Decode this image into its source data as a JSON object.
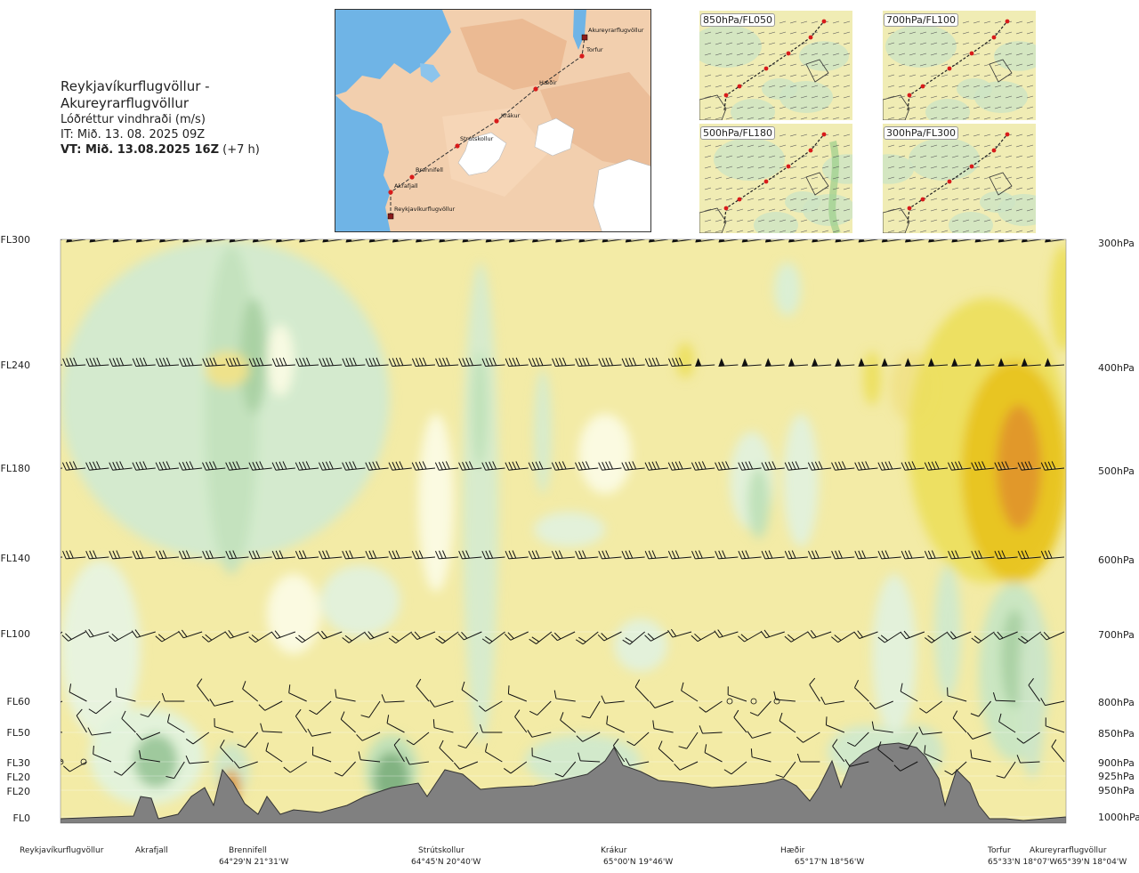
{
  "header": {
    "title": "Reykjavíkurflugvöllur - Akureyrarflugvöllur",
    "subtitle": "Lóðréttur vindhraði (m/s)",
    "initial_time": "IT: Mið. 13. 08. 2025 09Z",
    "valid_time_bold": "VT: Mið. 13.08.2025 16Z",
    "valid_time_suffix": "(+7 h)"
  },
  "colors": {
    "strong_down": "#7fb17f",
    "down": "#a9d1a2",
    "weak_down": "#cfe8ca",
    "neutral_pale": "#fbfbe4",
    "weak_up": "#f3eba6",
    "up": "#ecdf5e",
    "strong_up": "#e8c420",
    "very_strong_up": "#e0962a",
    "terrain": "#808080",
    "route": "#d81b1b",
    "sea": "#6fb4e6",
    "land": "#f0c7a3",
    "snow": "#ffffff"
  },
  "route_map": {
    "waypoints": [
      {
        "name": "Reykjavíkurflugvöllur"
      },
      {
        "name": "Akrafjall"
      },
      {
        "name": "Brennifell"
      },
      {
        "name": "Strútskollur"
      },
      {
        "name": "Krákur"
      },
      {
        "name": "Hæðir"
      },
      {
        "name": "Torfur"
      },
      {
        "name": "Akureyrarflugvöllur"
      }
    ]
  },
  "panels": [
    {
      "label": "850hPa/FL050",
      "icon": "wind-map-icon"
    },
    {
      "label": "700hPa/FL100",
      "icon": "wind-map-icon"
    },
    {
      "label": "500hPa/FL180",
      "icon": "wind-map-icon"
    },
    {
      "label": "300hPa/FL300",
      "icon": "wind-map-icon"
    }
  ],
  "chart_data": {
    "type": "heatmap",
    "title": "Reykjavíkurflugvöllur - Akureyrarflugvöllur",
    "variable": "Lóðréttur vindhraði (m/s)",
    "flight_levels": [
      "FL300",
      "FL240",
      "FL180",
      "FL140",
      "FL100",
      "FL60",
      "FL50",
      "FL30",
      "FL20",
      "FL20",
      "FL0"
    ],
    "pressure_levels": [
      "300hPa",
      "400hPa",
      "500hPa",
      "600hPa",
      "700hPa",
      "800hPa",
      "850hPa",
      "900hPa",
      "925hPa",
      "950hPa",
      "1000hPa"
    ],
    "pressure_hpa": [
      300,
      400,
      500,
      600,
      700,
      800,
      850,
      900,
      925,
      950,
      1000
    ],
    "barb_rows_hpa": [
      300,
      400,
      500,
      600,
      700,
      800,
      850,
      900
    ],
    "locations": [
      {
        "name": "Reykjavíkurflugvöllur",
        "coord": ""
      },
      {
        "name": "Akrafjall",
        "coord": ""
      },
      {
        "name": "Brennifell",
        "coord": "64°29'N 21°31'W"
      },
      {
        "name": "Strútskollur",
        "coord": "64°45'N 20°40'W"
      },
      {
        "name": "Krákur",
        "coord": "65°00'N 19°46'W"
      },
      {
        "name": "Hæðir",
        "coord": "65°17'N 18°56'W"
      },
      {
        "name": "Torfur",
        "coord": "65°33'N 18°07'W"
      },
      {
        "name": "Akureyrarflugvöllur",
        "coord": "65°39'N 18°04'W"
      }
    ],
    "legend": "none"
  }
}
